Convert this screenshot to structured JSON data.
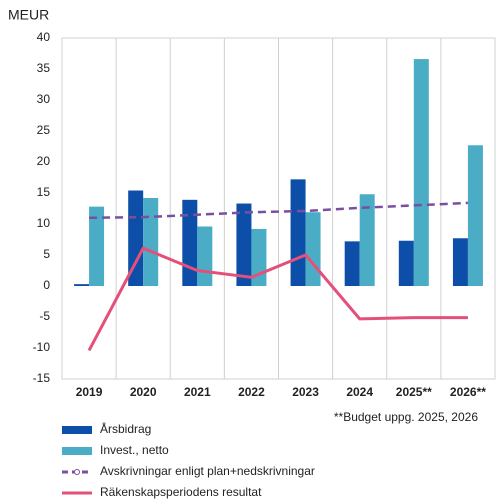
{
  "chart_data": {
    "type": "bar",
    "y_label": "MEUR",
    "annotation": "**Budget uppg. 2025, 2026",
    "categories": [
      "2019",
      "2020",
      "2021",
      "2022",
      "2023",
      "2024",
      "2025**",
      "2026**"
    ],
    "series": [
      {
        "name": "Årsbidrag",
        "type": "bar",
        "color": "#0d4fa8",
        "values": [
          0.3,
          15.4,
          13.9,
          13.3,
          17.2,
          7.2,
          7.3,
          7.7
        ]
      },
      {
        "name": "Invest., netto",
        "type": "bar",
        "color": "#4bacc6",
        "values": [
          12.8,
          14.2,
          9.6,
          9.2,
          11.9,
          14.8,
          36.6,
          22.7
        ]
      },
      {
        "name": "Avskrivningar enligt plan+nedskrivningar",
        "type": "line",
        "dashed": true,
        "color": "#7a4fa0",
        "values": [
          11.0,
          11.1,
          11.5,
          11.9,
          12.1,
          12.6,
          13.0,
          13.4
        ]
      },
      {
        "name": "Räkenskapsperiodens resultat",
        "type": "line",
        "dashed": false,
        "color": "#e5507a",
        "values": [
          -10.4,
          6.1,
          2.5,
          1.4,
          5.0,
          -5.3,
          -5.1,
          -5.1
        ]
      }
    ],
    "ylim": [
      -15,
      40
    ],
    "yticks": [
      -15,
      -10,
      -5,
      0,
      5,
      10,
      15,
      20,
      25,
      30,
      35,
      40
    ],
    "grid": false
  }
}
